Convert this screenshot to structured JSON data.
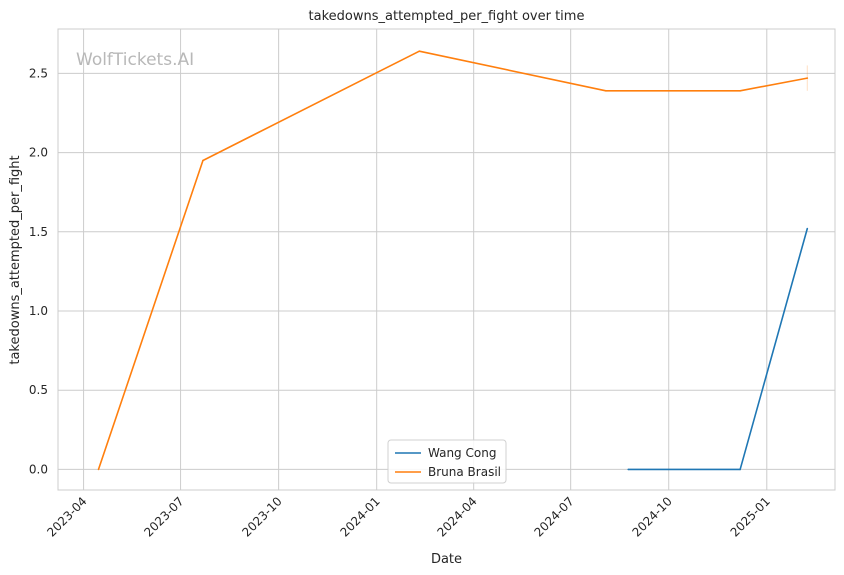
{
  "chart_data": {
    "type": "line",
    "title": "takedowns_attempted_per_fight over time",
    "xlabel": "Date",
    "ylabel": "takedowns_attempted_per_fight",
    "watermark": "WolfTickets.AI",
    "x_ticks": [
      "2023-04",
      "2023-07",
      "2023-10",
      "2024-01",
      "2024-04",
      "2024-07",
      "2024-10",
      "2025-01"
    ],
    "y_ticks": [
      "0.0",
      "0.5",
      "1.0",
      "1.5",
      "2.0",
      "2.5"
    ],
    "xlim": [
      "2023-03-08",
      "2025-03-06"
    ],
    "ylim": [
      -0.13,
      2.78
    ],
    "grid": true,
    "legend_position": "lower center",
    "series": [
      {
        "name": "Wang Cong",
        "color": "#1f77b4",
        "points": [
          {
            "x": "2024-08-24",
            "y": 0.0
          },
          {
            "x": "2024-12-07",
            "y": 0.0
          },
          {
            "x": "2025-02-08",
            "y": 1.52
          }
        ]
      },
      {
        "name": "Bruna Brasil",
        "color": "#ff7f0e",
        "points": [
          {
            "x": "2023-04-15",
            "y": 0.0
          },
          {
            "x": "2023-07-22",
            "y": 1.95
          },
          {
            "x": "2024-02-10",
            "y": 2.64
          },
          {
            "x": "2024-08-03",
            "y": 2.39
          },
          {
            "x": "2024-12-07",
            "y": 2.39
          },
          {
            "x": "2025-02-08",
            "y": 2.47
          }
        ]
      }
    ]
  }
}
